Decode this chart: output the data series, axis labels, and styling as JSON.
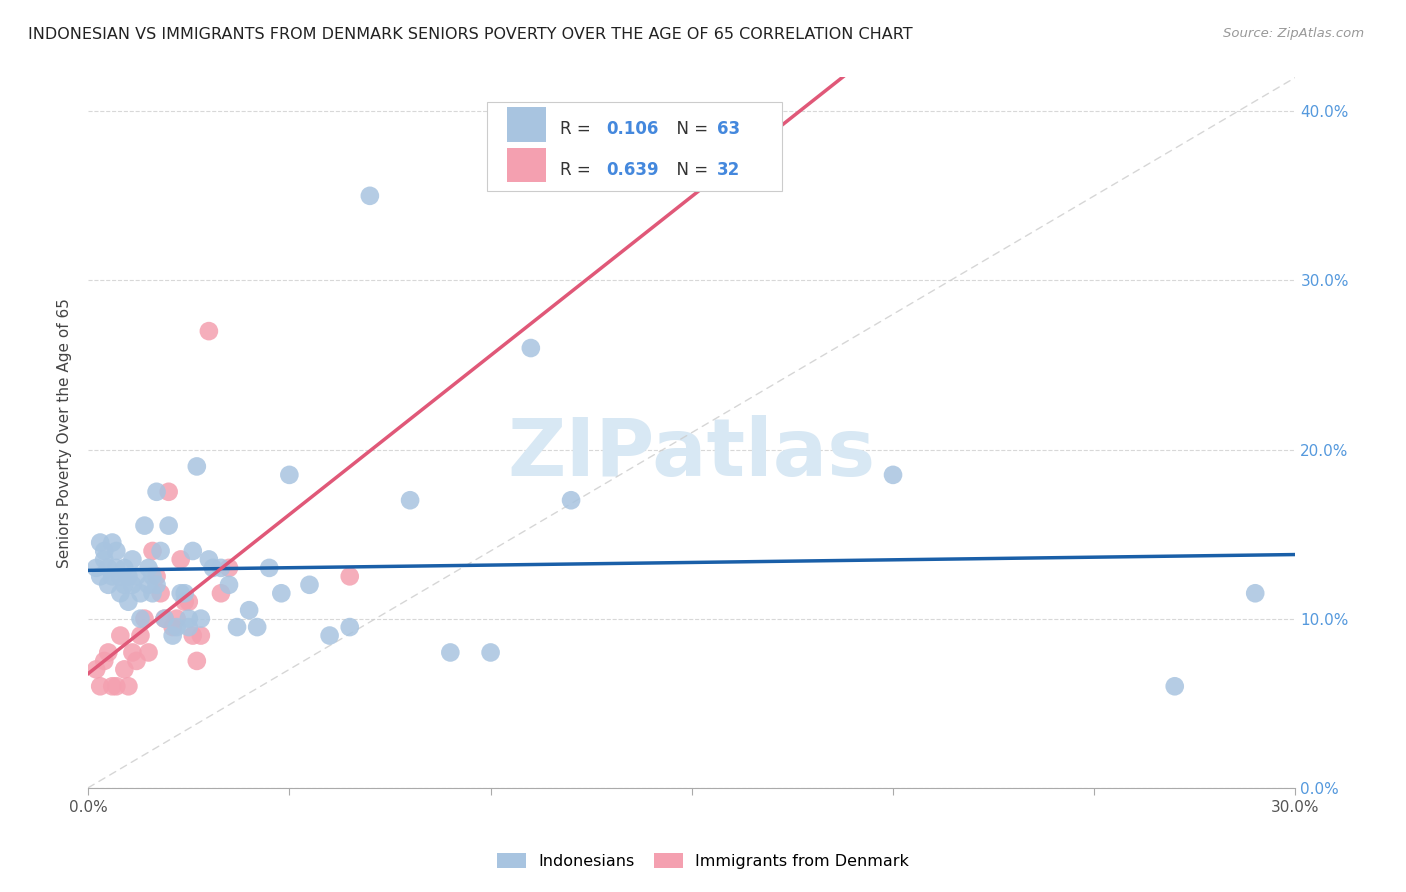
{
  "title": "INDONESIAN VS IMMIGRANTS FROM DENMARK SENIORS POVERTY OVER THE AGE OF 65 CORRELATION CHART",
  "source": "Source: ZipAtlas.com",
  "ylabel": "Seniors Poverty Over the Age of 65",
  "xlim": [
    0.0,
    0.3
  ],
  "ylim": [
    0.0,
    0.42
  ],
  "legend1_R": "0.106",
  "legend1_N": "63",
  "legend2_R": "0.639",
  "legend2_N": "32",
  "indonesian_color": "#a8c4e0",
  "denmark_color": "#f4a0b0",
  "indonesian_line_color": "#1a5fa8",
  "denmark_line_color": "#e05878",
  "diagonal_line_color": "#cccccc",
  "watermark_color": "#d0dff0",
  "indonesian_x": [
    0.002,
    0.003,
    0.003,
    0.004,
    0.004,
    0.005,
    0.005,
    0.006,
    0.006,
    0.007,
    0.007,
    0.008,
    0.008,
    0.009,
    0.009,
    0.01,
    0.01,
    0.011,
    0.011,
    0.012,
    0.013,
    0.013,
    0.014,
    0.015,
    0.015,
    0.016,
    0.016,
    0.017,
    0.017,
    0.018,
    0.019,
    0.02,
    0.021,
    0.022,
    0.023,
    0.024,
    0.025,
    0.025,
    0.026,
    0.027,
    0.028,
    0.03,
    0.031,
    0.033,
    0.035,
    0.037,
    0.04,
    0.042,
    0.045,
    0.048,
    0.05,
    0.055,
    0.06,
    0.065,
    0.07,
    0.08,
    0.09,
    0.1,
    0.11,
    0.12,
    0.2,
    0.27,
    0.29
  ],
  "indonesian_y": [
    0.13,
    0.145,
    0.125,
    0.14,
    0.135,
    0.12,
    0.13,
    0.145,
    0.125,
    0.14,
    0.13,
    0.115,
    0.125,
    0.13,
    0.12,
    0.11,
    0.125,
    0.12,
    0.135,
    0.125,
    0.1,
    0.115,
    0.155,
    0.13,
    0.12,
    0.115,
    0.125,
    0.175,
    0.12,
    0.14,
    0.1,
    0.155,
    0.09,
    0.095,
    0.115,
    0.115,
    0.095,
    0.1,
    0.14,
    0.19,
    0.1,
    0.135,
    0.13,
    0.13,
    0.12,
    0.095,
    0.105,
    0.095,
    0.13,
    0.115,
    0.185,
    0.12,
    0.09,
    0.095,
    0.35,
    0.17,
    0.08,
    0.08,
    0.26,
    0.17,
    0.185,
    0.06,
    0.115
  ],
  "denmark_x": [
    0.002,
    0.003,
    0.004,
    0.005,
    0.006,
    0.007,
    0.008,
    0.009,
    0.01,
    0.011,
    0.012,
    0.013,
    0.014,
    0.015,
    0.016,
    0.017,
    0.018,
    0.019,
    0.02,
    0.021,
    0.022,
    0.023,
    0.024,
    0.025,
    0.026,
    0.027,
    0.028,
    0.03,
    0.033,
    0.035,
    0.065,
    0.15
  ],
  "denmark_y": [
    0.07,
    0.06,
    0.075,
    0.08,
    0.06,
    0.06,
    0.09,
    0.07,
    0.06,
    0.08,
    0.075,
    0.09,
    0.1,
    0.08,
    0.14,
    0.125,
    0.115,
    0.1,
    0.175,
    0.095,
    0.1,
    0.135,
    0.11,
    0.11,
    0.09,
    0.075,
    0.09,
    0.27,
    0.115,
    0.13,
    0.125,
    0.36
  ],
  "background_color": "#ffffff",
  "grid_color": "#d8d8d8",
  "x_ticks": [
    0.0,
    0.3
  ],
  "y_ticks": [
    0.0,
    0.1,
    0.2,
    0.3,
    0.4
  ],
  "x_tick_minor": [
    0.05,
    0.1,
    0.15,
    0.2,
    0.25
  ]
}
